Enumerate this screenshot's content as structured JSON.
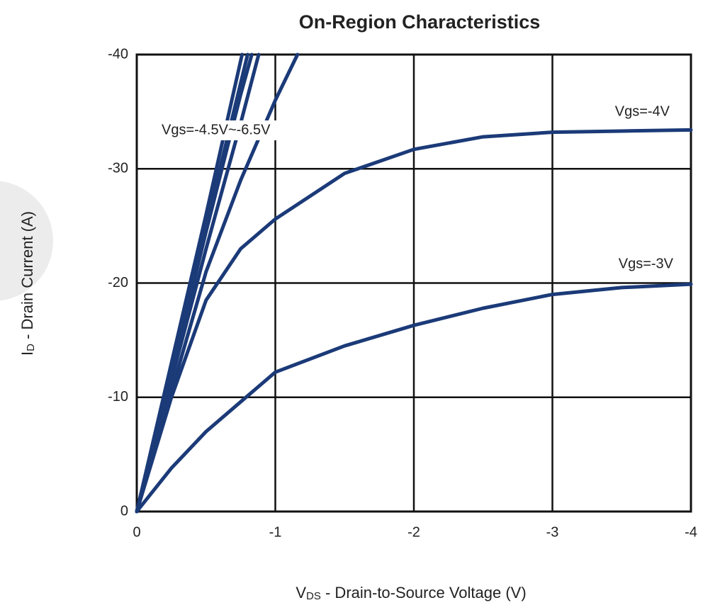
{
  "chart_data": {
    "type": "line",
    "title": "On-Region Characteristics",
    "x_label": [
      "V",
      "DS",
      " - Drain-to-Source Voltage (V)"
    ],
    "y_label": [
      "I",
      "D",
      " - Drain Current (A)"
    ],
    "xlim": [
      0,
      -4
    ],
    "xticks": [
      0,
      -1,
      -2,
      -3,
      -4
    ],
    "ylim": [
      0,
      -40
    ],
    "yticks": [
      0,
      -10,
      -20,
      -30,
      -40
    ],
    "grid": true,
    "annotations": [
      "Vgs=-4.5V~-6.5V",
      "Vgs=-4V",
      "Vgs=-3V"
    ],
    "series": [
      {
        "color": "#1b3a78",
        "x": [
          0,
          -0.25,
          -0.5,
          -0.75,
          -1,
          -1.5,
          -2,
          -2.5,
          -3,
          -3.5,
          -4
        ],
        "values": [
          0,
          -3.8,
          -7,
          -9.6,
          -12.2,
          -14.5,
          -16.3,
          -17.8,
          -19,
          -19.6,
          -19.9
        ]
      },
      {
        "color": "#1b3a78",
        "x": [
          0,
          -0.25,
          -0.5,
          -0.75,
          -1,
          -1.5,
          -2,
          -2.5,
          -3,
          -3.5,
          -4
        ],
        "values": [
          0,
          -10,
          -18.5,
          -23,
          -25.6,
          -29.6,
          -31.7,
          -32.8,
          -33.2,
          -33.3,
          -33.4
        ]
      },
      {
        "color": "#1b3a78",
        "x": [
          0,
          -0.25,
          -0.5,
          -0.75,
          -1,
          -1.16
        ],
        "values": [
          0,
          -10.5,
          -21,
          -29,
          -36,
          -40
        ]
      },
      {
        "color": "#1b3a78",
        "x": [
          0,
          -0.25,
          -0.5,
          -0.75,
          -0.88
        ],
        "values": [
          0,
          -11.5,
          -23,
          -34,
          -40
        ]
      },
      {
        "color": "#1b3a78",
        "x": [
          0,
          -0.25,
          -0.5,
          -0.75,
          -0.83
        ],
        "values": [
          0,
          -12,
          -24.5,
          -36.5,
          -40
        ]
      },
      {
        "color": "#1b3a78",
        "x": [
          0,
          -0.25,
          -0.5,
          -0.75,
          -0.8
        ],
        "values": [
          0,
          -12.5,
          -25,
          -37.5,
          -40
        ]
      },
      {
        "color": "#1b3a78",
        "x": [
          0,
          -0.25,
          -0.5,
          -0.76
        ],
        "values": [
          0,
          -13,
          -26,
          -40
        ]
      }
    ]
  }
}
